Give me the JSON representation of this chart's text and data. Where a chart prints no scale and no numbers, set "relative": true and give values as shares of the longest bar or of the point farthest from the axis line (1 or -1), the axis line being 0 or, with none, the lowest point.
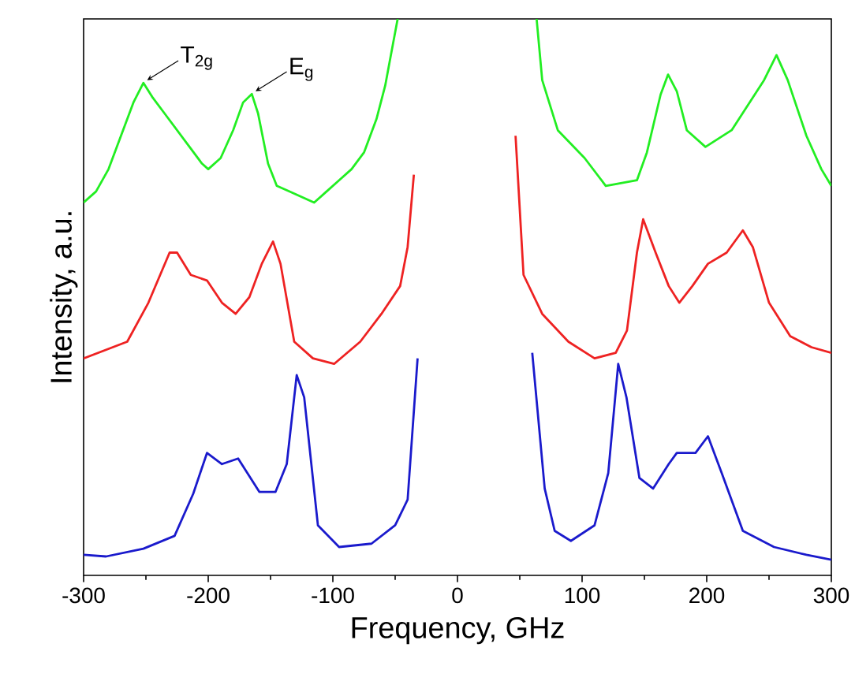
{
  "chart_data": {
    "type": "line",
    "relative": true,
    "xlabel": "Frequency, GHz",
    "ylabel": "Intensity, a.u.",
    "xlim": [
      -300,
      300
    ],
    "xticks": [
      -300,
      -200,
      -100,
      0,
      100,
      200,
      300
    ],
    "grid": false,
    "line_style": "solid",
    "marker": "none",
    "series": [
      {
        "color": "#22ee22",
        "x": [
          -300,
          -290,
          -280,
          -270,
          -260,
          -252,
          -245,
          -235,
          -225,
          -215,
          -205,
          -200,
          -190,
          -180,
          -172,
          -165,
          -160,
          -152,
          -145,
          -135,
          -125,
          -115,
          -105,
          -95,
          -85,
          -75,
          -65,
          -58,
          -53,
          -48,
          null,
          63.5,
          68,
          80.5,
          102,
          119,
          144,
          152,
          163,
          169,
          176,
          184,
          199,
          220,
          233,
          246,
          256,
          265,
          280,
          292,
          300
        ],
        "values": [
          0.67,
          0.69,
          0.73,
          0.79,
          0.85,
          0.885,
          0.86,
          0.83,
          0.8,
          0.77,
          0.74,
          0.73,
          0.75,
          0.8,
          0.85,
          0.865,
          0.83,
          0.74,
          0.7,
          0.69,
          0.68,
          0.67,
          0.69,
          0.71,
          0.73,
          0.76,
          0.82,
          0.88,
          0.94,
          1.0,
          null,
          1.0,
          0.89,
          0.8,
          0.75,
          0.7,
          0.71,
          0.76,
          0.864,
          0.9,
          0.87,
          0.8,
          0.77,
          0.8,
          0.845,
          0.89,
          0.935,
          0.89,
          0.79,
          0.73,
          0.7
        ]
      },
      {
        "color": "#ee2222",
        "x": [
          -300,
          -265,
          -248,
          -231,
          -225,
          -214,
          -201,
          -189,
          -178,
          -167,
          -157,
          -148,
          -142,
          -131,
          -116,
          -99,
          -78,
          -61,
          -46,
          -40,
          -35,
          null,
          46.6,
          53,
          68,
          89,
          110,
          127,
          136,
          144,
          149,
          159,
          169.5,
          178,
          188.5,
          201,
          216,
          229,
          237,
          250,
          267,
          284,
          300
        ],
        "values": [
          0.39,
          0.42,
          0.49,
          0.58,
          0.58,
          0.54,
          0.53,
          0.49,
          0.47,
          0.5,
          0.56,
          0.6,
          0.56,
          0.42,
          0.39,
          0.38,
          0.42,
          0.47,
          0.52,
          0.59,
          0.72,
          null,
          0.79,
          0.54,
          0.47,
          0.42,
          0.39,
          0.4,
          0.44,
          0.58,
          0.64,
          0.58,
          0.52,
          0.49,
          0.52,
          0.56,
          0.58,
          0.62,
          0.59,
          0.49,
          0.43,
          0.41,
          0.4
        ]
      },
      {
        "color": "#1a1acc",
        "x": [
          -300,
          -282,
          -252,
          -227,
          -212,
          -201,
          -189,
          -176,
          -159,
          -146,
          -137,
          -129,
          -123,
          -112,
          -95,
          -69,
          -50,
          -40,
          -32,
          null,
          60,
          70,
          78,
          91,
          110,
          121,
          129,
          135.6,
          146,
          157,
          169.5,
          176,
          191,
          201,
          212,
          229,
          254,
          280,
          300
        ],
        "values": [
          0.037,
          0.034,
          0.048,
          0.071,
          0.147,
          0.22,
          0.2,
          0.21,
          0.15,
          0.15,
          0.2,
          0.36,
          0.32,
          0.09,
          0.051,
          0.057,
          0.09,
          0.136,
          0.39,
          null,
          0.4,
          0.156,
          0.08,
          0.062,
          0.09,
          0.184,
          0.38,
          0.32,
          0.175,
          0.156,
          0.2,
          0.22,
          0.22,
          0.25,
          0.184,
          0.08,
          0.051,
          0.037,
          0.028
        ]
      }
    ],
    "annotations": [
      {
        "text": "T$_{2g}$",
        "x": -252,
        "y": 0.885
      },
      {
        "text": "E$_{g}$",
        "x": -165,
        "y": 0.865
      }
    ]
  }
}
